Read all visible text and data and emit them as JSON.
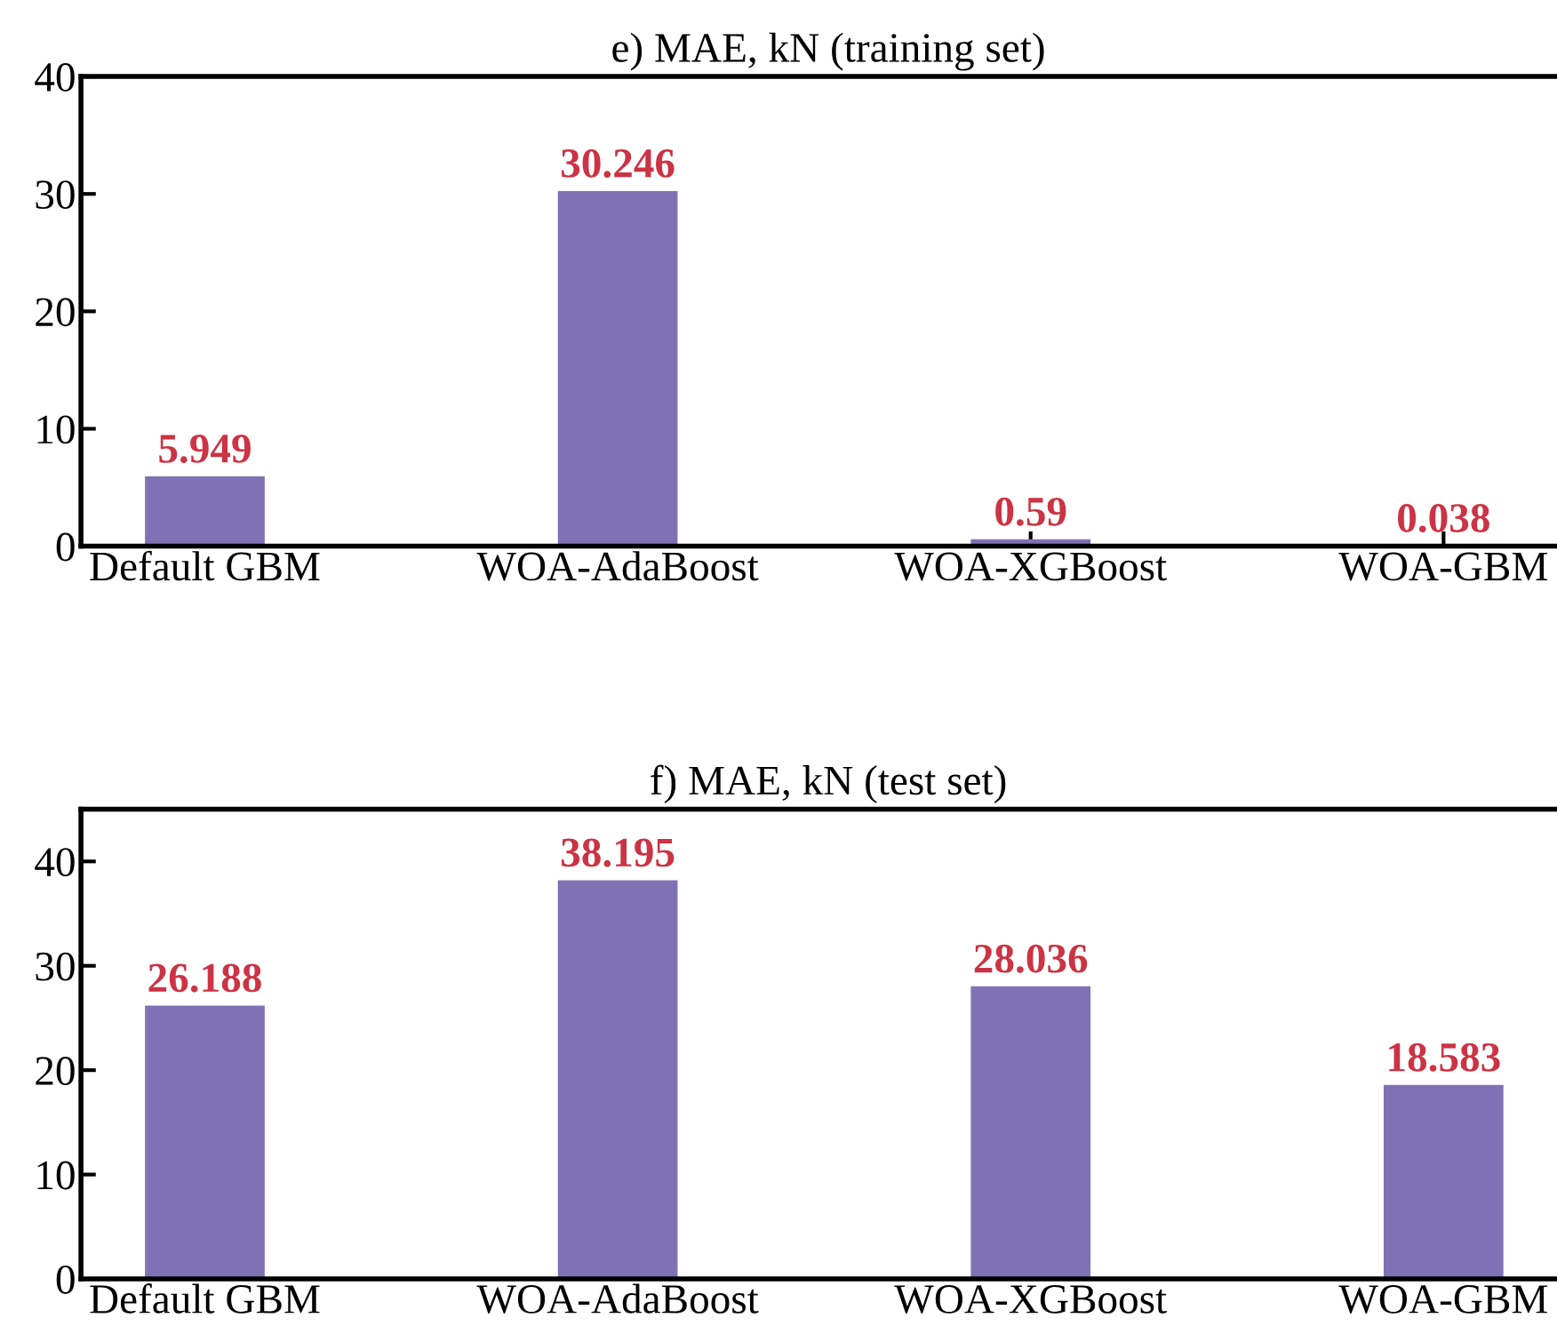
{
  "chart_data": [
    {
      "type": "bar",
      "title": "e) MAE, kN (training set)",
      "categories": [
        "Default GBM",
        "WOA-AdaBoost",
        "WOA-XGBoost",
        "WOA-GBM"
      ],
      "values": [
        5.949,
        30.246,
        0.59,
        0.038
      ],
      "color": "#7f72b4",
      "ylim": [
        0,
        40
      ],
      "yticks": [
        0,
        10,
        20,
        30,
        40
      ],
      "data_labels": true,
      "grid": false
    },
    {
      "type": "bar",
      "title": "f) MAE, kN (test set)",
      "categories": [
        "Default GBM",
        "WOA-AdaBoost",
        "WOA-XGBoost",
        "WOA-GBM"
      ],
      "values": [
        26.188,
        38.195,
        28.036,
        18.583
      ],
      "color": "#7f72b4",
      "ylim": [
        0,
        45
      ],
      "yticks": [
        0,
        10,
        20,
        30,
        40
      ],
      "data_labels": true,
      "grid": false
    }
  ]
}
